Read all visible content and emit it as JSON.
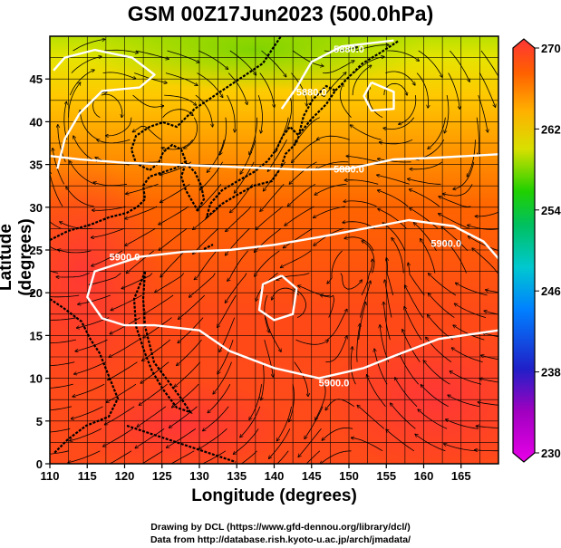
{
  "title": "GSM 00Z17Jun2023 (500.0hPa)",
  "xlabel": "Longitude (degrees)",
  "ylabel": "Latitude  (degrees)",
  "credits": [
    "Drawing by DCL (https://www.gfd-dennou.org/library/dcl/)",
    "Data from http://database.rish.kyoto-u.ac.jp/arch/jmadata/"
  ],
  "chart_data": {
    "type": "heatmap",
    "title": "GSM 00Z17Jun2023 (500.0hPa)",
    "xlabel": "Longitude (degrees)",
    "ylabel": "Latitude  (degrees)",
    "xlim": [
      110,
      170
    ],
    "ylim": [
      0,
      50
    ],
    "x_ticks": [
      110,
      115,
      120,
      125,
      130,
      135,
      140,
      145,
      150,
      155,
      160,
      165
    ],
    "y_ticks": [
      0,
      5,
      10,
      15,
      20,
      25,
      30,
      35,
      40,
      45
    ],
    "grid": true,
    "colorbar": {
      "min": 230,
      "max": 270,
      "tick_labels": [
        230,
        238,
        246,
        254,
        262,
        270
      ],
      "colors": [
        "#e000e0",
        "#3030d0",
        "#00a0ff",
        "#00c8a0",
        "#00d000",
        "#d0e000",
        "#ffb000",
        "#ff5000",
        "#ff3030"
      ],
      "placement": "right"
    },
    "contours": {
      "labels": [
        {
          "text": "5880.0",
          "lon": 150,
          "lat": 48.5
        },
        {
          "text": "5880.0",
          "lon": 145,
          "lat": 43.5
        },
        {
          "text": "5880.0",
          "lon": 150,
          "lat": 34.5
        },
        {
          "text": "5900.0",
          "lon": 163,
          "lat": 25.8
        },
        {
          "text": "5900.0",
          "lon": 120,
          "lat": 24.2
        },
        {
          "text": "5900.0",
          "lon": 148,
          "lat": 9.5
        }
      ],
      "lines": [
        [
          [
            111,
            34.5
          ],
          [
            112,
            38
          ],
          [
            114,
            41
          ],
          [
            117,
            43.6
          ],
          [
            122,
            44
          ],
          [
            124,
            45.5
          ],
          [
            121,
            47.5
          ],
          [
            116,
            48.4
          ],
          [
            112,
            47.5
          ],
          [
            110.5,
            46
          ]
        ],
        [
          [
            141,
            41.5
          ],
          [
            143,
            44
          ],
          [
            145,
            47
          ],
          [
            149,
            48.8
          ],
          [
            153,
            49.2
          ],
          [
            156,
            49.5
          ]
        ],
        [
          [
            110,
            36
          ],
          [
            114,
            35.6
          ],
          [
            120,
            35.2
          ],
          [
            126,
            35
          ],
          [
            132,
            34.8
          ],
          [
            138,
            34.6
          ],
          [
            144,
            34.4
          ],
          [
            150,
            34.5
          ],
          [
            156,
            35.6
          ],
          [
            162,
            35.8
          ],
          [
            170,
            36.2
          ]
        ],
        [
          [
            170,
            24
          ],
          [
            168,
            26
          ],
          [
            164,
            27.8
          ],
          [
            158,
            28.5
          ],
          [
            152,
            27.5
          ],
          [
            146,
            26.5
          ],
          [
            140,
            25.6
          ],
          [
            134,
            25
          ],
          [
            128,
            24.8
          ],
          [
            122,
            24.2
          ],
          [
            116,
            22.5
          ],
          [
            115,
            19.5
          ],
          [
            117,
            17
          ],
          [
            120,
            16.2
          ],
          [
            124,
            16.2
          ],
          [
            130,
            15.6
          ],
          [
            134,
            13.2
          ],
          [
            140,
            11.2
          ],
          [
            146,
            10
          ],
          [
            152,
            11.2
          ],
          [
            156,
            12.6
          ],
          [
            162,
            14.6
          ],
          [
            170,
            15.6
          ]
        ],
        [
          [
            141,
            22
          ],
          [
            143,
            20.5
          ],
          [
            142.5,
            17.5
          ],
          [
            140,
            16.8
          ],
          [
            138,
            18
          ],
          [
            138.5,
            21
          ],
          [
            141,
            22
          ]
        ],
        [
          [
            153,
            44.6
          ],
          [
            156,
            43.5
          ],
          [
            156,
            41.5
          ],
          [
            153,
            41.3
          ],
          [
            152,
            43
          ],
          [
            153,
            44.6
          ]
        ]
      ]
    },
    "vortices": [
      {
        "lon": 117,
        "lat": 42
      },
      {
        "lon": 128,
        "lat": 39.5
      },
      {
        "lon": 141,
        "lat": 19.5
      },
      {
        "lon": 151,
        "lat": 24
      },
      {
        "lon": 156,
        "lat": 43
      }
    ]
  }
}
